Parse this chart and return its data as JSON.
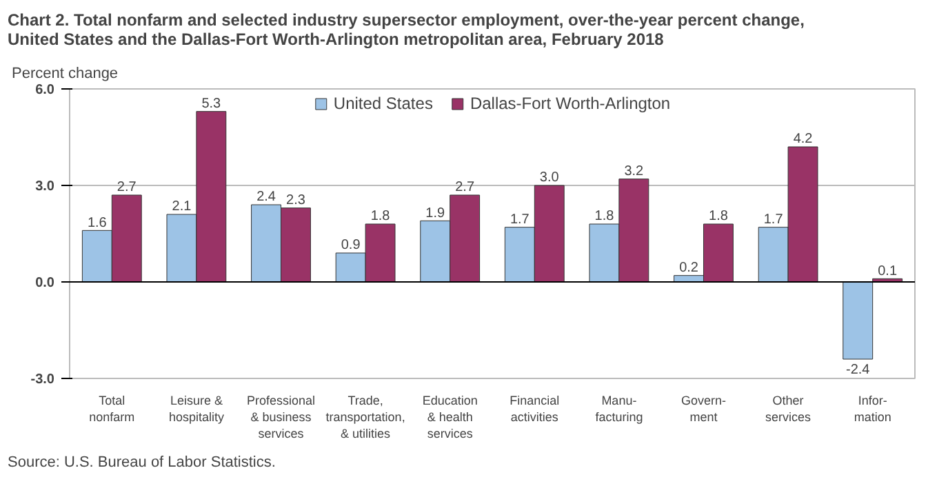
{
  "chart_data": {
    "type": "bar",
    "title": "Chart 2. Total nonfarm and selected industry  supersector employment, over-the-year percent change,\nUnited  States and the Dallas-Fort Worth-Arlington metropolitan area, February 2018",
    "ylabel": "Percent change",
    "annotations": [
      "Source: U.S. Bureau of Labor Statistics."
    ],
    "categories": [
      "Total\nnonfarm",
      "Leisure &\nhospitality",
      "Professional\n& business\nservices",
      "Trade,\ntransportation,\n& utilities",
      "Education\n& health\nservices",
      "Financial\nactivities",
      "Manu-\nfacturing",
      "Govern-\nment",
      "Other\nservices",
      "Infor-\nmation"
    ],
    "series": [
      {
        "name": "United States",
        "color": "#9dc3e6",
        "values": [
          1.6,
          2.1,
          2.4,
          0.9,
          1.9,
          1.7,
          1.8,
          0.2,
          1.7,
          -2.4
        ],
        "value_labels": [
          "1.6",
          "2.1",
          "2.4",
          "0.9",
          "1.9",
          "1.7",
          "1.8",
          "0.2",
          "1.7",
          "-2.4"
        ]
      },
      {
        "name": "Dallas-Fort Worth-Arlington",
        "color": "#993366",
        "values": [
          2.7,
          5.3,
          2.3,
          1.8,
          2.7,
          3.0,
          3.2,
          1.8,
          4.2,
          0.1
        ],
        "value_labels": [
          "2.7",
          "5.3",
          "2.3",
          "1.8",
          "2.7",
          "3.0",
          "3.2",
          "1.8",
          "4.2",
          "0.1"
        ]
      }
    ],
    "ylim": [
      -3,
      6
    ],
    "yticks": [
      {
        "value": -3,
        "label": "-3.0"
      },
      {
        "value": 0,
        "label": "0.0"
      },
      {
        "value": 3,
        "label": "3.0"
      },
      {
        "value": 6,
        "label": "6.0"
      }
    ],
    "ref_lines": [
      {
        "axis": "y",
        "value": 0,
        "color": "#000000"
      }
    ],
    "grid": "y",
    "legend": "top"
  }
}
